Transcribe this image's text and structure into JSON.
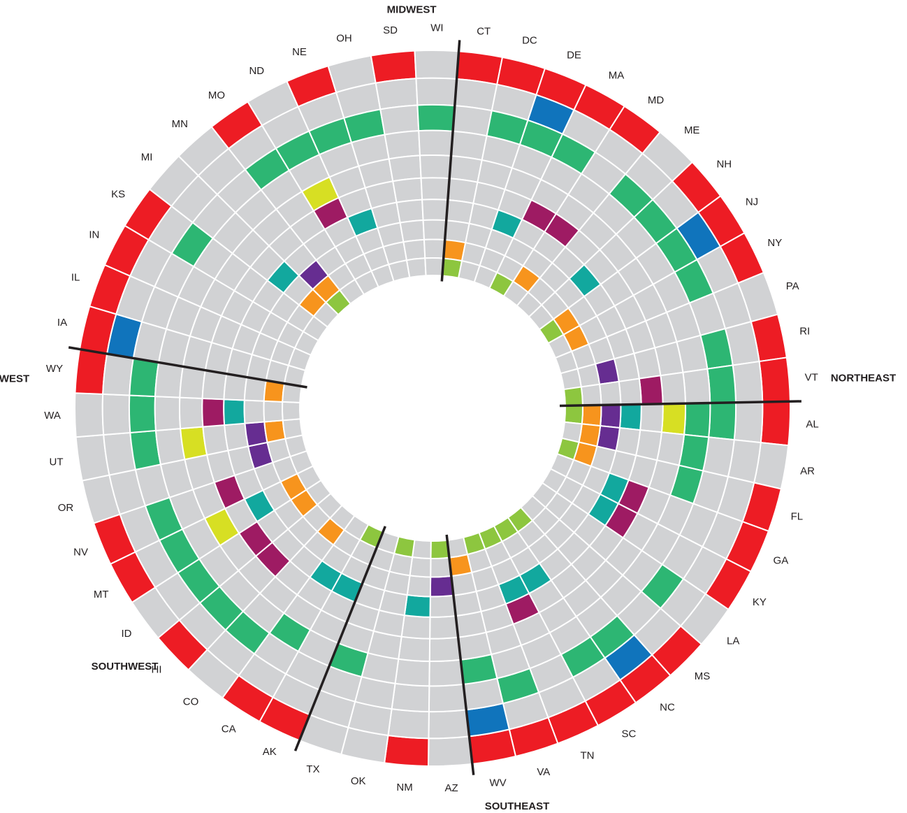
{
  "chart_data": {
    "type": "radial-heatmap",
    "title": "",
    "ring_count": 10,
    "colors": {
      "empty": "#d1d2d4",
      "red": "#ed1c24",
      "blue": "#1074bc",
      "green": "#2db673",
      "yellow": "#d7df23",
      "magenta": "#9e1b63",
      "teal": "#12a89e",
      "purple": "#662d91",
      "orange": "#f7941d",
      "lime": "#8dc63f"
    },
    "ring_colors": [
      "red",
      "blue",
      "green",
      "green",
      "yellow",
      "magenta",
      "teal",
      "purple",
      "orange",
      "lime"
    ],
    "regions": [
      {
        "name": "MIDWEST",
        "states": [
          "IA",
          "IL",
          "IN",
          "KS",
          "MI",
          "MN",
          "MO",
          "ND",
          "NE",
          "OH",
          "SD",
          "WI"
        ]
      },
      {
        "name": "NORTHEAST",
        "states": [
          "CT",
          "DC",
          "DE",
          "MA",
          "MD",
          "ME",
          "NH",
          "NJ",
          "NY",
          "PA",
          "RI",
          "VT"
        ]
      },
      {
        "name": "SOUTHEAST",
        "states": [
          "AL",
          "AR",
          "FL",
          "GA",
          "KY",
          "LA",
          "MS",
          "NC",
          "SC",
          "TN",
          "VA",
          "WV"
        ]
      },
      {
        "name": "SOUTHWEST",
        "states": [
          "AZ",
          "NM",
          "OK",
          "TX"
        ]
      },
      {
        "name": "WEST",
        "states": [
          "AK",
          "CA",
          "CO",
          "HI",
          "ID",
          "MT",
          "NV",
          "OR",
          "UT",
          "WA",
          "WY"
        ]
      }
    ],
    "states": [
      {
        "code": "IA",
        "rings": [
          1,
          1,
          0,
          0,
          0,
          0,
          0,
          0,
          0,
          0
        ]
      },
      {
        "code": "IL",
        "rings": [
          1,
          0,
          0,
          0,
          0,
          0,
          0,
          0,
          0,
          0
        ]
      },
      {
        "code": "IN",
        "rings": [
          1,
          0,
          0,
          0,
          0,
          0,
          0,
          0,
          0,
          0
        ]
      },
      {
        "code": "KS",
        "rings": [
          1,
          0,
          1,
          0,
          0,
          0,
          0,
          0,
          0,
          0
        ]
      },
      {
        "code": "MI",
        "rings": [
          0,
          0,
          0,
          0,
          0,
          0,
          1,
          0,
          1,
          0
        ]
      },
      {
        "code": "MN",
        "rings": [
          0,
          0,
          0,
          0,
          0,
          0,
          0,
          1,
          1,
          1
        ]
      },
      {
        "code": "MO",
        "rings": [
          1,
          0,
          1,
          0,
          0,
          0,
          0,
          0,
          0,
          0
        ]
      },
      {
        "code": "ND",
        "rings": [
          0,
          0,
          1,
          0,
          1,
          1,
          0,
          0,
          0,
          0
        ]
      },
      {
        "code": "NE",
        "rings": [
          1,
          0,
          1,
          0,
          0,
          0,
          1,
          0,
          0,
          0
        ]
      },
      {
        "code": "OH",
        "rings": [
          0,
          0,
          1,
          0,
          0,
          0,
          0,
          0,
          0,
          0
        ]
      },
      {
        "code": "SD",
        "rings": [
          1,
          0,
          0,
          0,
          0,
          0,
          0,
          0,
          0,
          0
        ]
      },
      {
        "code": "WI",
        "rings": [
          0,
          0,
          1,
          0,
          0,
          0,
          0,
          0,
          0,
          0
        ]
      },
      {
        "code": "CT",
        "rings": [
          1,
          0,
          0,
          0,
          0,
          0,
          0,
          0,
          1,
          1
        ]
      },
      {
        "code": "DC",
        "rings": [
          1,
          0,
          1,
          0,
          0,
          0,
          0,
          0,
          0,
          0
        ]
      },
      {
        "code": "DE",
        "rings": [
          1,
          1,
          1,
          0,
          0,
          0,
          1,
          0,
          0,
          0
        ]
      },
      {
        "code": "MA",
        "rings": [
          1,
          0,
          1,
          0,
          0,
          1,
          0,
          0,
          0,
          1
        ]
      },
      {
        "code": "MD",
        "rings": [
          1,
          0,
          0,
          0,
          0,
          1,
          0,
          0,
          1,
          0
        ]
      },
      {
        "code": "ME",
        "rings": [
          0,
          0,
          1,
          0,
          0,
          0,
          0,
          0,
          0,
          0
        ]
      },
      {
        "code": "NH",
        "rings": [
          1,
          0,
          1,
          0,
          0,
          0,
          1,
          0,
          0,
          0
        ]
      },
      {
        "code": "NJ",
        "rings": [
          1,
          1,
          1,
          0,
          0,
          0,
          0,
          0,
          1,
          1
        ]
      },
      {
        "code": "NY",
        "rings": [
          1,
          0,
          1,
          0,
          0,
          0,
          0,
          0,
          1,
          0
        ]
      },
      {
        "code": "PA",
        "rings": [
          0,
          0,
          0,
          0,
          0,
          0,
          0,
          0,
          0,
          0
        ]
      },
      {
        "code": "RI",
        "rings": [
          1,
          0,
          1,
          0,
          0,
          0,
          0,
          1,
          0,
          0
        ]
      },
      {
        "code": "VT",
        "rings": [
          1,
          0,
          1,
          0,
          0,
          1,
          0,
          0,
          0,
          1
        ]
      },
      {
        "code": "AL",
        "rings": [
          1,
          0,
          1,
          1,
          1,
          0,
          1,
          1,
          1,
          1
        ]
      },
      {
        "code": "AR",
        "rings": [
          0,
          0,
          0,
          1,
          0,
          0,
          0,
          1,
          1,
          0
        ]
      },
      {
        "code": "FL",
        "rings": [
          1,
          0,
          0,
          1,
          0,
          0,
          0,
          0,
          1,
          1
        ]
      },
      {
        "code": "GA",
        "rings": [
          1,
          0,
          0,
          0,
          0,
          1,
          1,
          0,
          0,
          0
        ]
      },
      {
        "code": "KY",
        "rings": [
          1,
          0,
          0,
          0,
          0,
          1,
          1,
          0,
          0,
          0
        ]
      },
      {
        "code": "LA",
        "rings": [
          0,
          0,
          1,
          0,
          0,
          0,
          0,
          0,
          0,
          0
        ]
      },
      {
        "code": "MS",
        "rings": [
          1,
          0,
          0,
          0,
          0,
          0,
          0,
          0,
          0,
          0
        ]
      },
      {
        "code": "NC",
        "rings": [
          1,
          1,
          1,
          0,
          0,
          0,
          0,
          0,
          0,
          1
        ]
      },
      {
        "code": "SC",
        "rings": [
          1,
          0,
          1,
          0,
          0,
          0,
          1,
          0,
          0,
          1
        ]
      },
      {
        "code": "TN",
        "rings": [
          1,
          0,
          0,
          0,
          0,
          1,
          1,
          0,
          0,
          1
        ]
      },
      {
        "code": "VA",
        "rings": [
          1,
          0,
          1,
          0,
          0,
          0,
          0,
          0,
          0,
          1
        ]
      },
      {
        "code": "WV",
        "rings": [
          1,
          1,
          0,
          1,
          0,
          0,
          0,
          0,
          1,
          0
        ]
      },
      {
        "code": "AZ",
        "rings": [
          0,
          0,
          0,
          0,
          0,
          0,
          0,
          1,
          0,
          1
        ]
      },
      {
        "code": "NM",
        "rings": [
          1,
          0,
          0,
          0,
          0,
          0,
          1,
          0,
          0,
          0
        ]
      },
      {
        "code": "OK",
        "rings": [
          0,
          0,
          0,
          0,
          0,
          0,
          0,
          0,
          0,
          1
        ]
      },
      {
        "code": "TX",
        "rings": [
          0,
          0,
          0,
          1,
          0,
          0,
          0,
          0,
          0,
          0
        ]
      },
      {
        "code": "AK",
        "rings": [
          1,
          0,
          0,
          0,
          0,
          0,
          1,
          0,
          0,
          1
        ]
      },
      {
        "code": "CA",
        "rings": [
          1,
          0,
          0,
          1,
          0,
          0,
          1,
          0,
          0,
          0
        ]
      },
      {
        "code": "CO",
        "rings": [
          0,
          0,
          1,
          0,
          0,
          0,
          0,
          0,
          1,
          0
        ]
      },
      {
        "code": "HI",
        "rings": [
          1,
          0,
          1,
          0,
          0,
          1,
          0,
          0,
          0,
          0
        ]
      },
      {
        "code": "ID",
        "rings": [
          0,
          0,
          1,
          0,
          0,
          1,
          0,
          0,
          1,
          0
        ]
      },
      {
        "code": "MT",
        "rings": [
          1,
          0,
          1,
          0,
          1,
          0,
          1,
          0,
          1,
          0
        ]
      },
      {
        "code": "NV",
        "rings": [
          1,
          0,
          1,
          0,
          0,
          1,
          0,
          0,
          0,
          0
        ]
      },
      {
        "code": "OR",
        "rings": [
          0,
          0,
          0,
          0,
          0,
          0,
          0,
          1,
          0,
          0
        ]
      },
      {
        "code": "UT",
        "rings": [
          0,
          0,
          1,
          0,
          1,
          0,
          0,
          1,
          1,
          0
        ]
      },
      {
        "code": "WA",
        "rings": [
          0,
          0,
          1,
          0,
          0,
          1,
          1,
          0,
          0,
          0
        ]
      },
      {
        "code": "WY",
        "rings": [
          1,
          0,
          1,
          0,
          0,
          0,
          0,
          0,
          1,
          0
        ]
      }
    ]
  }
}
